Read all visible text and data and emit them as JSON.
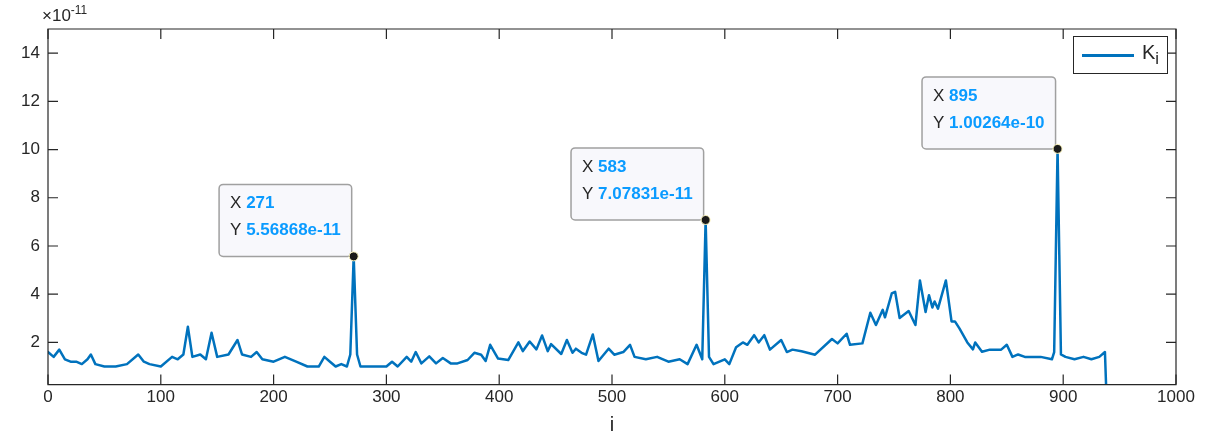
{
  "chart_data": {
    "type": "line",
    "xlabel": "i",
    "x": [
      0,
      5,
      10,
      15,
      20,
      25,
      30,
      35,
      38,
      42,
      50,
      60,
      70,
      80,
      85,
      90,
      100,
      110,
      115,
      120,
      124,
      128,
      135,
      140,
      145,
      150,
      160,
      168,
      172,
      180,
      185,
      190,
      200,
      210,
      220,
      230,
      240,
      245,
      250,
      255,
      260,
      265,
      268,
      271,
      274,
      277,
      290,
      300,
      305,
      310,
      318,
      322,
      326,
      331,
      338,
      344,
      350,
      357,
      363,
      372,
      378,
      384,
      388,
      392,
      399,
      408,
      417,
      421,
      427,
      433,
      438,
      443,
      446,
      455,
      460,
      465,
      468,
      473,
      477,
      483,
      488,
      497,
      502,
      510,
      516,
      520,
      530,
      540,
      550,
      560,
      567,
      575,
      580,
      583,
      586,
      590,
      600,
      604,
      610,
      616,
      620,
      626,
      630,
      635,
      640,
      650,
      655,
      660,
      668,
      680,
      695,
      700,
      708,
      711,
      722,
      729,
      734,
      740,
      742,
      748,
      751,
      755,
      763,
      769,
      773,
      778,
      781,
      784,
      786,
      789,
      796,
      801,
      804,
      808,
      815,
      820,
      822,
      828,
      835,
      845,
      850,
      855,
      860,
      866,
      870,
      880,
      890,
      892,
      895,
      898,
      902,
      910,
      918,
      925,
      932,
      937,
      938
    ],
    "series": [
      {
        "name": "K$_{i}$",
        "color": "#0072bd",
        "values": [
          1.6,
          1.4,
          1.7,
          1.3,
          1.2,
          1.2,
          1.1,
          1.3,
          1.5,
          1.1,
          1.0,
          1.0,
          1.1,
          1.5,
          1.2,
          1.1,
          1.0,
          1.4,
          1.3,
          1.5,
          2.65,
          1.4,
          1.5,
          1.3,
          2.4,
          1.4,
          1.5,
          2.1,
          1.5,
          1.4,
          1.6,
          1.3,
          1.2,
          1.4,
          1.2,
          1.0,
          1.0,
          1.4,
          1.2,
          1.0,
          1.1,
          1.0,
          1.5,
          5.56868,
          1.5,
          1.0,
          1.0,
          1.0,
          1.2,
          1.0,
          1.4,
          1.2,
          1.6,
          1.13,
          1.42,
          1.13,
          1.35,
          1.13,
          1.13,
          1.27,
          1.57,
          1.49,
          1.23,
          1.9,
          1.33,
          1.27,
          2.0,
          1.64,
          2.04,
          1.71,
          2.29,
          1.64,
          1.93,
          1.52,
          2.1,
          1.57,
          1.74,
          1.57,
          1.49,
          2.33,
          1.23,
          1.74,
          1.49,
          1.6,
          1.9,
          1.4,
          1.3,
          1.4,
          1.2,
          1.3,
          1.1,
          1.9,
          1.3,
          7.07831,
          1.4,
          1.1,
          1.3,
          1.1,
          1.8,
          2.0,
          1.9,
          2.3,
          2.0,
          2.3,
          1.7,
          2.1,
          1.6,
          1.7,
          1.63,
          1.49,
          2.14,
          1.96,
          2.36,
          1.9,
          1.96,
          3.23,
          2.72,
          3.35,
          3.04,
          4.03,
          4.1,
          3.01,
          3.3,
          2.72,
          4.57,
          3.26,
          3.96,
          3.45,
          3.7,
          3.4,
          4.57,
          2.87,
          2.87,
          2.58,
          2.0,
          1.71,
          2.0,
          1.61,
          1.7,
          1.7,
          1.9,
          1.4,
          1.5,
          1.4,
          1.4,
          1.4,
          1.3,
          1.6,
          10.0264,
          1.5,
          1.4,
          1.3,
          1.4,
          1.3,
          1.4,
          1.6,
          0.25
        ]
      }
    ],
    "xlim": [
      0,
      1000
    ],
    "xticks": [
      0,
      100,
      200,
      300,
      400,
      500,
      600,
      700,
      800,
      900,
      1000
    ],
    "ylim": [
      0.25,
      15
    ],
    "yticks": [
      2,
      4,
      6,
      8,
      10,
      12,
      14
    ],
    "annotations": [
      "×10$^{-11}$",
      {
        "text": "X 271\nY 5.56868e-11",
        "x": 271,
        "y": 5.56868
      },
      {
        "text": "X 583\nY 7.07831e-11",
        "x": 583,
        "y": 7.07831
      },
      {
        "text": "X 895\nY 1.00264e-10",
        "x": 895,
        "y": 10.0264
      }
    ],
    "grid": false,
    "legend": "top right",
    "marker": "none",
    "line_style": "solid"
  }
}
